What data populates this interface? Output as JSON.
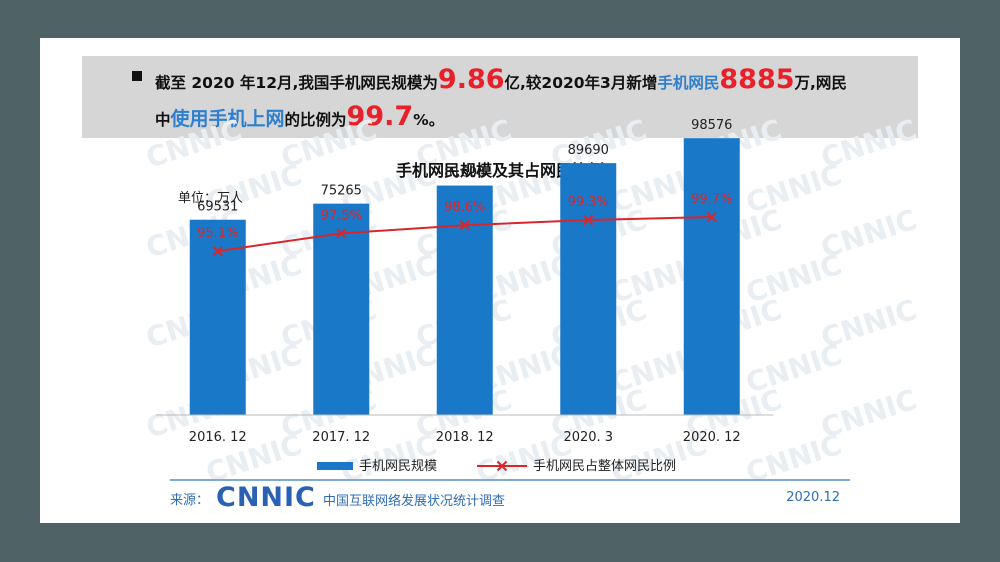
{
  "banner": {
    "line1_prefix": "截至 2020 年12月,我国手机网民规模为",
    "line1_value1": "9.86",
    "line1_mid": "亿,较2020年3月新增",
    "line1_highlight": "手机网民",
    "line1_value2": "8885",
    "line1_suffix": "万,网民",
    "line2_prefix": "中",
    "line2_highlight": "使用手机上网",
    "line2_mid": "的比例为",
    "line2_value": "99.7",
    "line2_suffix": "%。"
  },
  "watermark_text": "CNNIC",
  "chart_data": {
    "type": "bar",
    "title": "手机网民规模及其占网民比例",
    "unit_label": "单位：万人",
    "categories": [
      "2016. 12",
      "2017. 12",
      "2018. 12",
      "2020. 3",
      "2020. 12"
    ],
    "series": [
      {
        "name": "手机网民规模",
        "type": "bar",
        "color": "#1a78c8",
        "values": [
          69531,
          75265,
          81698,
          89690,
          98576
        ]
      },
      {
        "name": "手机网民占整体网民比例",
        "type": "line",
        "color": "#d9262b",
        "values": [
          95.1,
          97.5,
          98.6,
          99.3,
          99.7
        ],
        "labels": [
          "95.1%",
          "97.5%",
          "98.6%",
          "99.3%",
          "99.7%"
        ]
      }
    ],
    "ylim": [
      0,
      120000
    ],
    "y2lim": [
      80,
      102
    ]
  },
  "source": {
    "label": "来源：",
    "logo": "CNNIC",
    "org": "中国互联网络发展状况统计调查",
    "date": "2020.12"
  }
}
